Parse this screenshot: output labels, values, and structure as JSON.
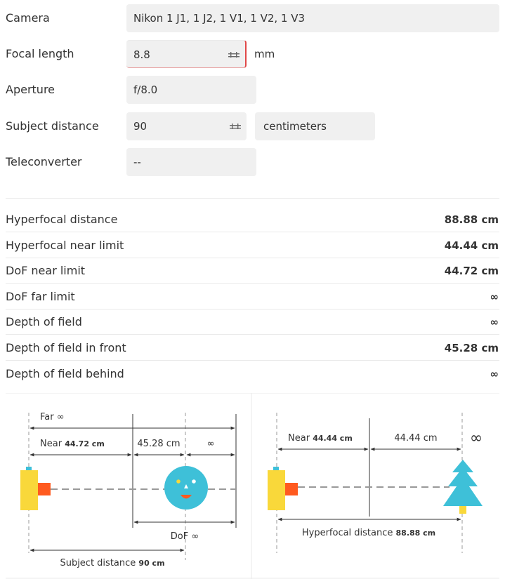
{
  "form": {
    "camera": {
      "label": "Camera",
      "value": "Nikon 1 J1, 1 J2, 1 V1, 1 V2, 1 V3"
    },
    "focal_length": {
      "label": "Focal length",
      "value": "8.8",
      "unit": "mm"
    },
    "aperture": {
      "label": "Aperture",
      "value": "f/8.0"
    },
    "subject_distance": {
      "label": "Subject distance",
      "value": "90",
      "unit": "centimeters"
    },
    "teleconverter": {
      "label": "Teleconverter",
      "value": "--"
    }
  },
  "results": [
    {
      "label": "Hyperfocal distance",
      "value": "88.88 cm"
    },
    {
      "label": "Hyperfocal near limit",
      "value": "44.44 cm"
    },
    {
      "label": "DoF near limit",
      "value": "44.72 cm"
    },
    {
      "label": "DoF far limit",
      "value": "∞"
    },
    {
      "label": "Depth of field",
      "value": "∞"
    },
    {
      "label": "Depth of field in front",
      "value": "45.28 cm"
    },
    {
      "label": "Depth of field behind",
      "value": "∞"
    }
  ],
  "dof_diagram": {
    "far_label": "Far",
    "far_value": "∞",
    "near_label": "Near",
    "near_value": "44.72 cm",
    "front_value": "45.28 cm",
    "behind_value": "∞",
    "dof_label": "DoF",
    "dof_value": "∞",
    "subject_label": "Subject distance",
    "subject_value": "90 cm"
  },
  "hyperfocal_diagram": {
    "near_label": "Near",
    "near_value": "44.44 cm",
    "mid_value": "44.44 cm",
    "infinity_symbol": "∞",
    "hyperfocal_label": "Hyperfocal distance",
    "hyperfocal_value": "88.88 cm"
  },
  "colors": {
    "camera_body": "#f9d83a",
    "camera_lens": "#ff5a1f",
    "camera_button": "#3ec0d8",
    "subject_face": "#3ec0d8",
    "tree": "#3ec0d8",
    "tree_trunk": "#f9d83a"
  }
}
